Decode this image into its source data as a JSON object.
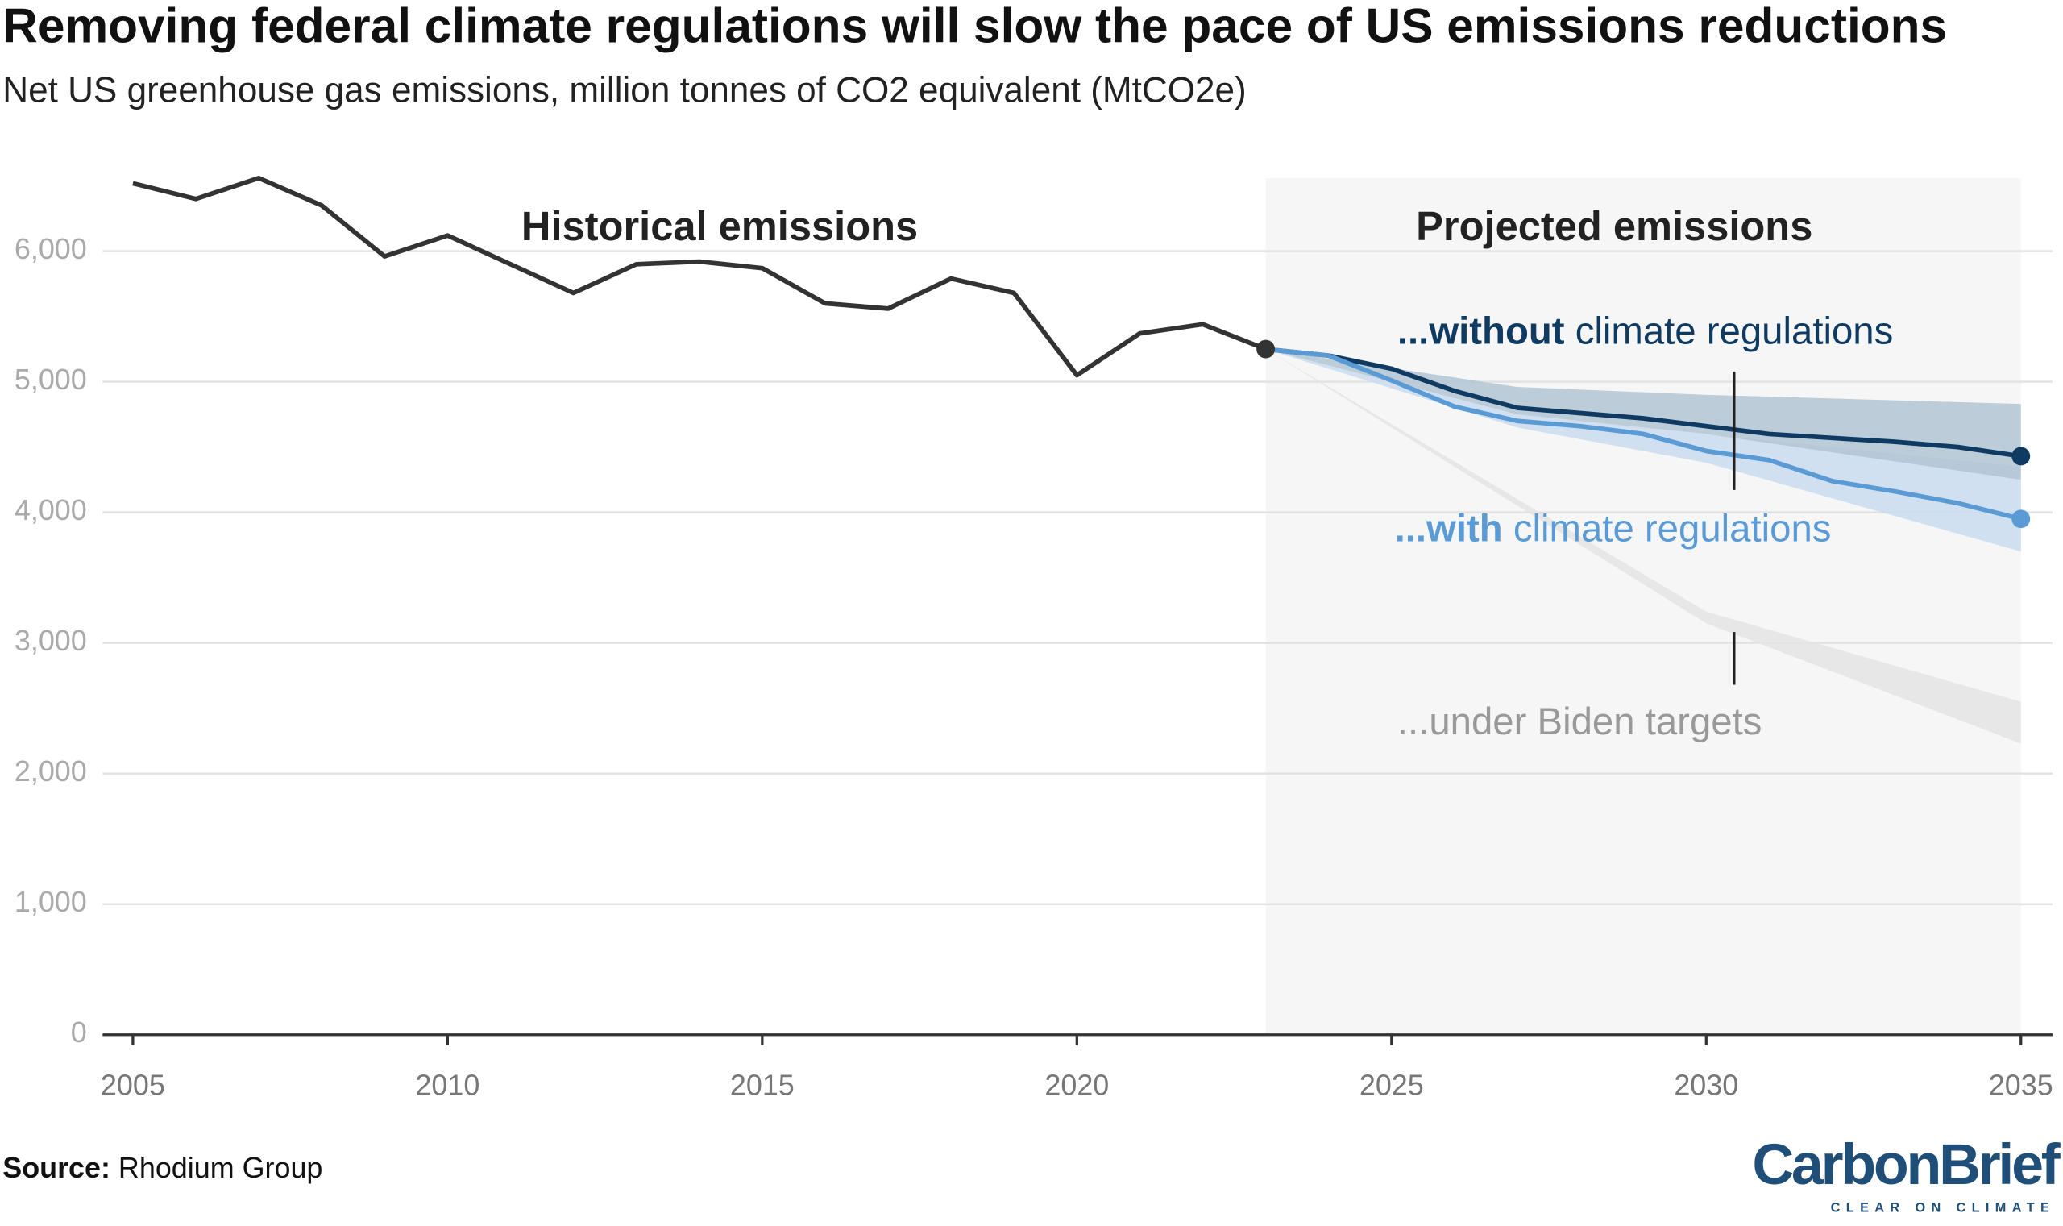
{
  "chart_data": {
    "type": "line",
    "title": "Removing federal climate regulations will slow the pace of US emissions reductions",
    "subtitle": "Net US greenhouse gas emissions, million tonnes of CO2 equivalent (MtCO2e)",
    "region_labels": [
      "Historical emissions",
      "Projected emissions"
    ],
    "projection_start": 2023,
    "xlim": [
      2005,
      2035
    ],
    "xticks": [
      2005,
      2010,
      2015,
      2020,
      2025,
      2030,
      2035
    ],
    "ylim": [
      0,
      6600
    ],
    "yticks": [
      0,
      {
        "value": 1000,
        "label": "1,000"
      },
      {
        "value": 2000,
        "label": "2,000"
      },
      {
        "value": 3000,
        "label": "3,000"
      },
      {
        "value": 4000,
        "label": "4,000"
      },
      {
        "value": 5000,
        "label": "5,000"
      },
      {
        "value": 6000,
        "label": "6,000"
      }
    ],
    "grid": true,
    "series": [
      {
        "color": "#333333",
        "x": [
          2005,
          2006,
          2007,
          2008,
          2009,
          2010,
          2011,
          2012,
          2013,
          2014,
          2015,
          2016,
          2017,
          2018,
          2019,
          2020,
          2021,
          2022,
          2023
        ],
        "values": [
          6520,
          6400,
          6560,
          6350,
          5960,
          6120,
          5900,
          5680,
          5900,
          5920,
          5870,
          5600,
          5560,
          5790,
          5680,
          5050,
          5370,
          5440,
          5250
        ]
      },
      {
        "label_bold": "...without",
        "label": "climate regulations",
        "color": "#0f3b63",
        "x": [
          2023,
          2024,
          2025,
          2026,
          2027,
          2028,
          2029,
          2030,
          2031,
          2032,
          2033,
          2034,
          2035
        ],
        "values": [
          5250,
          5200,
          5100,
          4930,
          4800,
          4760,
          4720,
          4660,
          4600,
          4570,
          4540,
          4500,
          4430
        ]
      },
      {
        "label_bold": "...with",
        "label": "climate regulations",
        "color": "#5b9bd5",
        "x": [
          2023,
          2024,
          2025,
          2026,
          2027,
          2028,
          2029,
          2030,
          2031,
          2032,
          2033,
          2034,
          2035
        ],
        "values": [
          5250,
          5200,
          5010,
          4810,
          4700,
          4660,
          4600,
          4470,
          4400,
          4240,
          4160,
          4070,
          3950
        ]
      }
    ],
    "bands": [
      {
        "color": "#e4e4e4",
        "label": "...under Biden targets",
        "x": [
          2023,
          2030,
          2035
        ],
        "high": [
          5250,
          3240,
          2550
        ],
        "low": [
          5250,
          3150,
          2230
        ]
      },
      {
        "color": "#c9dcef",
        "x": [
          2023,
          2027,
          2030,
          2035
        ],
        "high": [
          5250,
          4750,
          4600,
          4350
        ],
        "low": [
          5250,
          4650,
          4380,
          3700
        ]
      },
      {
        "color": "#b3c4d4",
        "x": [
          2023,
          2027,
          2030,
          2035
        ],
        "high": [
          5250,
          4960,
          4900,
          4830
        ],
        "low": [
          5250,
          4750,
          4600,
          4250
        ]
      }
    ],
    "source_bold": "Source:",
    "source": "Rhodium Group",
    "logo": "CarbonBrief",
    "logo_tagline": "CLEAR ON CLIMATE"
  }
}
